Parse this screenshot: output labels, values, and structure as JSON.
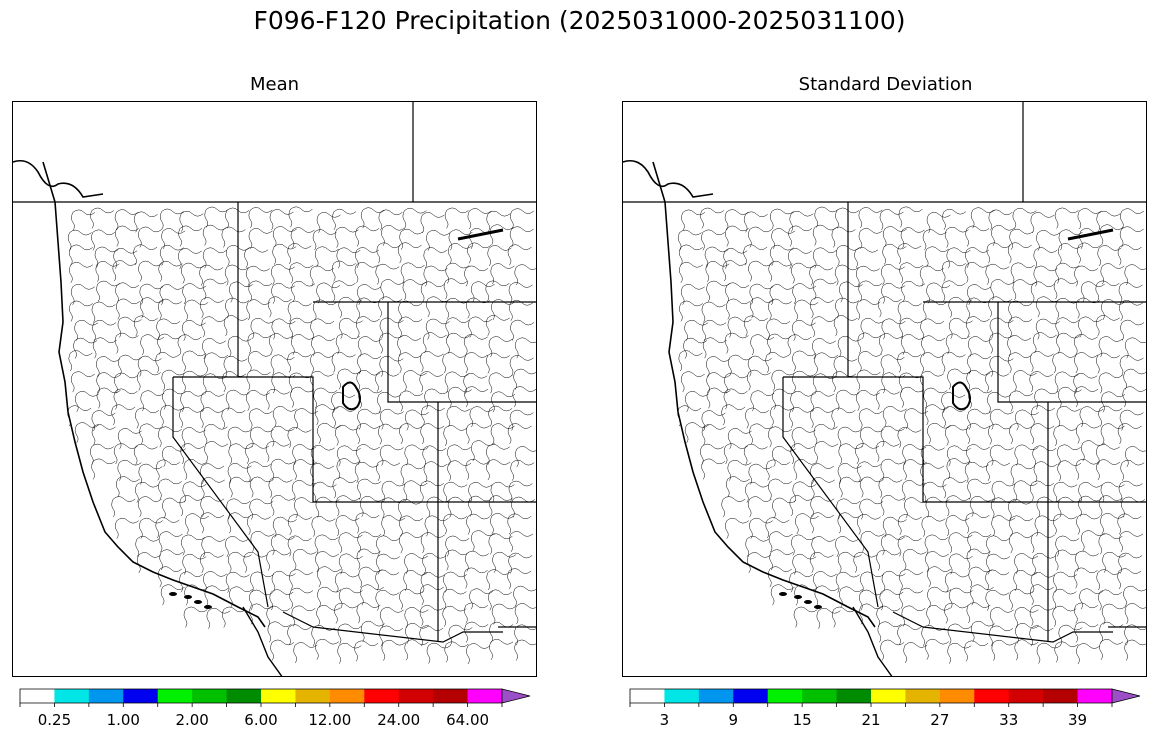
{
  "figure": {
    "title": "F096-F120 Precipitation (2025031000-2025031100)"
  },
  "colors": {
    "scale": [
      "#ffffff",
      "#00e5e5",
      "#0096f0",
      "#0000f0",
      "#00f000",
      "#00c000",
      "#008c00",
      "#ffff00",
      "#e5b400",
      "#ff8c00",
      "#ff0000",
      "#d20000",
      "#b40000",
      "#ff00ff",
      "#9c50c8"
    ],
    "boundary": "#000000"
  },
  "panels": [
    {
      "id": "mean",
      "title": "Mean",
      "colorbar": {
        "tick_labels": [
          "0.25",
          "1.00",
          "2.00",
          "6.00",
          "12.00",
          "24.00",
          "64.00"
        ],
        "extend": "max"
      }
    },
    {
      "id": "std",
      "title": "Standard Deviation",
      "colorbar": {
        "tick_labels": [
          "3",
          "9",
          "15",
          "21",
          "27",
          "33",
          "39"
        ],
        "extend": "max"
      }
    }
  ]
}
